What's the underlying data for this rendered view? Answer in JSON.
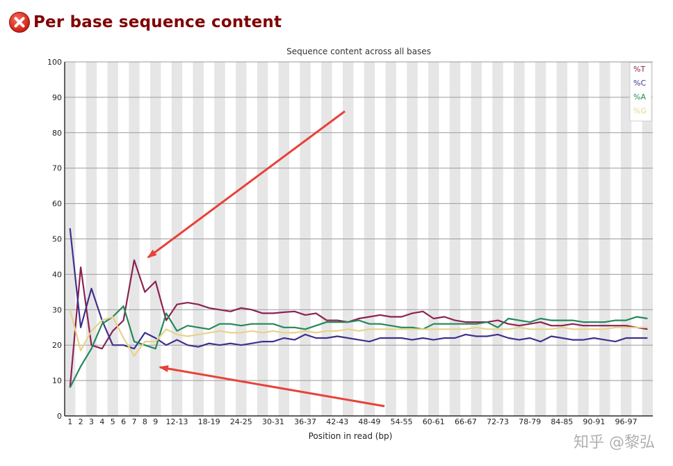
{
  "page": {
    "title": "Per base sequence content",
    "status_icon": "fail-icon",
    "watermark": "知乎 @黎弘"
  },
  "annotations": {
    "arrow_color": "#e8413a",
    "count": 2
  },
  "chart_data": {
    "type": "line",
    "title": "Sequence content across all bases",
    "xlabel": "Position in read (bp)",
    "ylabel": "",
    "ylim": [
      0,
      100
    ],
    "yticks": [
      "0",
      "10",
      "20",
      "30",
      "40",
      "50",
      "60",
      "70",
      "80",
      "90",
      "100"
    ],
    "categories": [
      "1",
      "2",
      "3",
      "4",
      "5",
      "6",
      "7",
      "8",
      "9",
      "10-11",
      "12-13",
      "14-15",
      "16-17",
      "18-19",
      "20-21",
      "22-23",
      "24-25",
      "26-27",
      "28-29",
      "30-31",
      "32-33",
      "34-35",
      "36-37",
      "38-39",
      "40-41",
      "42-43",
      "44-45",
      "46-47",
      "48-49",
      "50-51",
      "52-53",
      "54-55",
      "56-57",
      "58-59",
      "60-61",
      "62-63",
      "64-65",
      "66-67",
      "68-69",
      "70-71",
      "72-73",
      "74-75",
      "76-77",
      "78-79",
      "80-81",
      "82-83",
      "84-85",
      "86-87",
      "88-89",
      "90-91",
      "92-93",
      "94-95",
      "96-97",
      "98-99",
      "100-101"
    ],
    "tick_labels": [
      "1",
      "2",
      "3",
      "4",
      "5",
      "6",
      "7",
      "8",
      "9",
      "12-13",
      "18-19",
      "24-25",
      "30-31",
      "36-37",
      "42-43",
      "48-49",
      "54-55",
      "60-61",
      "66-67",
      "72-73",
      "78-79",
      "84-85",
      "90-91",
      "96-97"
    ],
    "series": [
      {
        "name": "%T",
        "color": "#8b2252",
        "values": [
          8,
          42,
          20,
          19,
          24,
          27,
          44,
          35,
          38,
          27,
          31.5,
          32,
          31.5,
          30.5,
          30,
          29.5,
          30.5,
          30,
          29,
          29,
          29.3,
          29.5,
          28.5,
          29,
          27,
          27,
          26.5,
          27.5,
          28,
          28.5,
          28,
          28,
          29,
          29.5,
          27.5,
          28,
          27,
          26.5,
          26.5,
          26.5,
          27,
          26,
          25.5,
          26,
          26.5,
          25.5,
          25.5,
          26,
          25.5,
          25.5,
          25.5,
          25.5,
          25.5,
          25,
          24.5
        ]
      },
      {
        "name": "%C",
        "color": "#40308c",
        "values": [
          53,
          25,
          36,
          27,
          20,
          20,
          19,
          23.5,
          22,
          20,
          21.5,
          20,
          19.5,
          20.5,
          20,
          20.5,
          20,
          20.5,
          21,
          21,
          22,
          21.5,
          23,
          22,
          22,
          22.5,
          22,
          21.5,
          21,
          22,
          22,
          22,
          21.5,
          22,
          21.5,
          22,
          22,
          23,
          22.5,
          22.5,
          23,
          22,
          21.5,
          22,
          21,
          22.5,
          22,
          21.5,
          21.5,
          22,
          21.5,
          21,
          22,
          22,
          22
        ]
      },
      {
        "name": "%A",
        "color": "#23885a",
        "values": [
          8,
          14,
          19,
          26,
          28,
          31,
          21,
          20,
          19,
          29,
          24,
          25.5,
          25,
          24.5,
          26,
          26,
          25.5,
          26,
          26,
          26,
          25,
          25,
          24.5,
          25.5,
          26.5,
          26.5,
          26.5,
          27,
          26,
          26,
          25.5,
          25,
          25,
          24.5,
          26,
          26,
          26,
          26,
          26,
          26.5,
          25,
          27.5,
          27,
          26.5,
          27.5,
          27,
          27,
          27,
          26.5,
          26.5,
          26.5,
          27,
          27,
          28,
          27.5
        ]
      },
      {
        "name": "%G",
        "color": "#e6d38a",
        "values": [
          30,
          18.5,
          24,
          27,
          28,
          22,
          17,
          21,
          21,
          24.5,
          23,
          22.5,
          23,
          23.5,
          24,
          23.5,
          23.5,
          24,
          23.5,
          24,
          23.5,
          23.5,
          24,
          23.5,
          24,
          24,
          24.5,
          24,
          24.5,
          24.5,
          24.5,
          24.5,
          24.5,
          24.5,
          24.5,
          24.5,
          24.5,
          24.5,
          25,
          24.5,
          24.5,
          24.5,
          25,
          24.5,
          24.5,
          24.5,
          25,
          24.5,
          24.5,
          24.5,
          24.5,
          25,
          25,
          25,
          25
        ]
      }
    ],
    "legend": "top-right",
    "grid": true
  }
}
